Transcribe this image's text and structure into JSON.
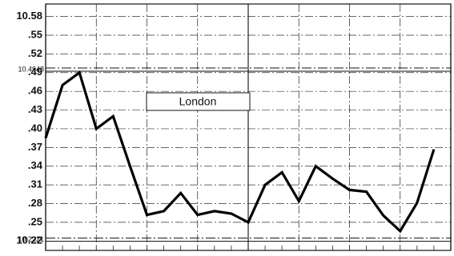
{
  "chart_data": {
    "type": "line",
    "annotations": [
      "London"
    ],
    "values": [
      10.385,
      10.47,
      10.49,
      10.4,
      10.42,
      10.34,
      10.262,
      10.268,
      10.297,
      10.262,
      10.268,
      10.264,
      10.25,
      10.31,
      10.33,
      10.284,
      10.34,
      10.32,
      10.302,
      10.299,
      10.261,
      10.236,
      10.281,
      10.367
    ],
    "color": "#000000",
    "ylim": [
      10.205,
      10.6
    ],
    "yticks": [
      10.58,
      {
        "value": 10.55,
        "label": ".55"
      },
      {
        "value": 10.52,
        "label": ".52"
      },
      10.4948,
      {
        "value": 10.49,
        "label": ".49"
      },
      {
        "value": 10.46,
        "label": ".46"
      },
      {
        "value": 10.43,
        "label": ".43"
      },
      {
        "value": 10.4,
        "label": ".40"
      },
      {
        "value": 10.37,
        "label": ".37"
      },
      {
        "value": 10.34,
        "label": ".34"
      },
      {
        "value": 10.31,
        "label": ".31"
      },
      {
        "value": 10.28,
        "label": ".28"
      },
      {
        "value": 10.25,
        "label": ".25"
      },
      10.2221,
      10.22
    ],
    "grid": true
  }
}
